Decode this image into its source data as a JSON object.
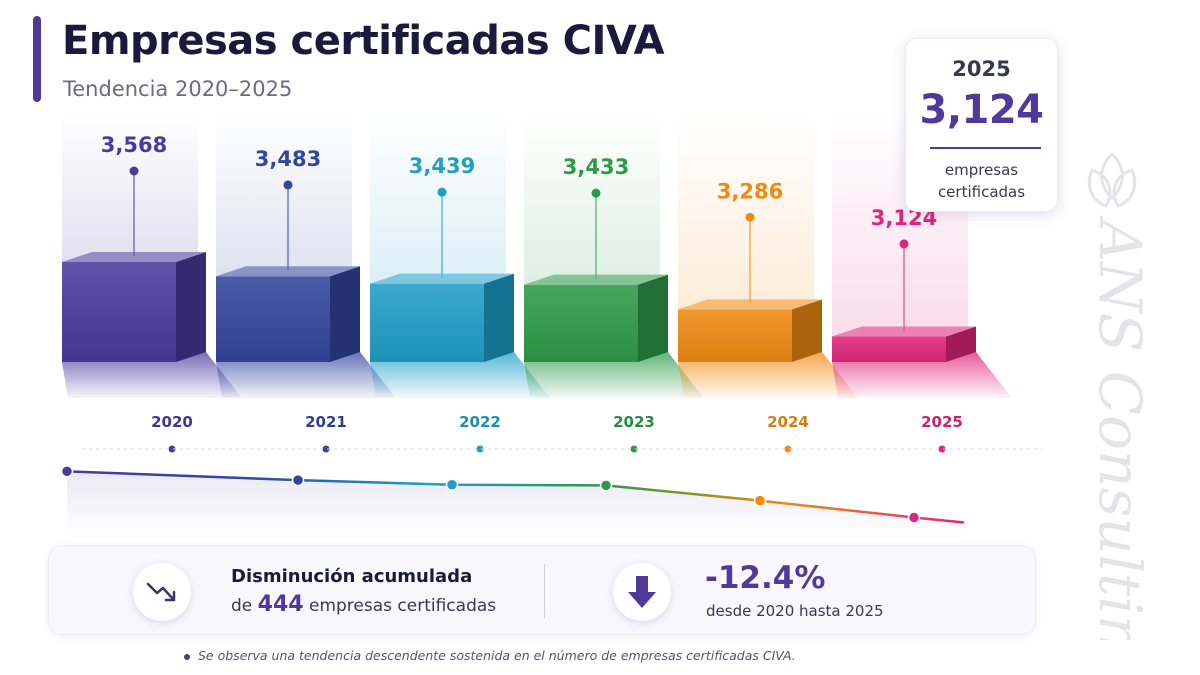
{
  "header": {
    "title": "Empresas certificadas CIVA",
    "subtitle": "Tendencia 2020–2025"
  },
  "kpi": {
    "year": "2025",
    "value": "3,124",
    "caption": "empresas certificadas"
  },
  "summary": {
    "heading": "Disminución acumulada",
    "prefix": "de",
    "amount": "444",
    "suffix": "empresas certificadas",
    "percent": "-12.4%",
    "period": "desde 2020 hasta 2025",
    "left_icon": "trending-down-icon",
    "right_icon": "arrow-down-icon"
  },
  "footnote": "Se observa una tendencia descendente sostenida en el número de empresas certificadas CIVA.",
  "watermark": "ANS Consulting",
  "chart_data": {
    "type": "bar",
    "categories": [
      "2020",
      "2021",
      "2022",
      "2023",
      "2024",
      "2025"
    ],
    "values": [
      3568,
      3483,
      3439,
      3433,
      3286,
      3124
    ],
    "value_labels": [
      "3,568",
      "3,483",
      "3,439",
      "3,433",
      "3,286",
      "3,124"
    ],
    "colors": [
      "#4a3a9e",
      "#33469e",
      "#1f9ec9",
      "#2e9a48",
      "#ef8a12",
      "#e0257a"
    ],
    "title": "Empresas certificadas CIVA",
    "subtitle": "Tendencia 2020–2025",
    "xlabel": "",
    "ylabel": "",
    "trend_line": true,
    "grid": false,
    "legend": "none"
  }
}
